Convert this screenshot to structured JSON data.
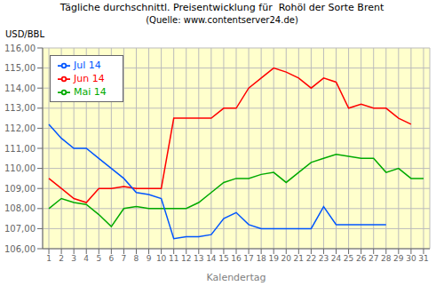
{
  "chart_data": {
    "type": "line",
    "title": "Tägliche durchschnittl. Preisentwicklung für  Rohöl der Sorte Brent",
    "subtitle": "(Quelle: www.contentserver24.de)",
    "x_label": "Kalendertag",
    "y_label": "USD/BBL",
    "xlim": [
      0.5,
      31.5
    ],
    "xticks": [
      1,
      2,
      3,
      4,
      5,
      6,
      7,
      8,
      9,
      10,
      11,
      12,
      13,
      14,
      15,
      16,
      17,
      18,
      19,
      20,
      21,
      22,
      23,
      24,
      25,
      26,
      27,
      28,
      29,
      30,
      31
    ],
    "ylim": [
      106.0,
      116.0
    ],
    "yticks": [
      {
        "value": 106.0,
        "label": "106,00"
      },
      {
        "value": 107.0,
        "label": "107,00"
      },
      {
        "value": 108.0,
        "label": "108,00"
      },
      {
        "value": 109.0,
        "label": "109,00"
      },
      {
        "value": 110.0,
        "label": "110,00"
      },
      {
        "value": 111.0,
        "label": "111,00"
      },
      {
        "value": 112.0,
        "label": "112,00"
      },
      {
        "value": 113.0,
        "label": "113,00"
      },
      {
        "value": 114.0,
        "label": "114,00"
      },
      {
        "value": 115.0,
        "label": "115,00"
      },
      {
        "value": 116.0,
        "label": "116,00"
      }
    ],
    "grid": true,
    "legend": "upper left",
    "x": [
      1,
      2,
      3,
      4,
      5,
      6,
      7,
      8,
      9,
      10,
      11,
      12,
      13,
      14,
      15,
      16,
      17,
      18,
      19,
      20,
      21,
      22,
      23,
      24,
      25,
      26,
      27,
      28,
      29,
      30,
      31
    ],
    "series": [
      {
        "name": "Mai 14",
        "color": "#00AA00",
        "values": [
          108.0,
          108.5,
          108.3,
          108.2,
          107.7,
          107.1,
          108.0,
          108.1,
          108.0,
          108.0,
          108.0,
          108.0,
          108.3,
          108.8,
          109.3,
          109.5,
          109.5,
          109.7,
          109.8,
          109.3,
          109.8,
          110.3,
          110.5,
          110.7,
          110.6,
          110.5,
          110.5,
          109.8,
          110.0,
          109.5,
          109.5
        ]
      },
      {
        "name": "Jun 14",
        "color": "#FF0000",
        "values": [
          109.5,
          109.0,
          108.5,
          108.3,
          109.0,
          109.0,
          109.1,
          109.0,
          109.0,
          109.0,
          112.5,
          112.5,
          112.5,
          112.5,
          113.0,
          113.0,
          114.0,
          114.5,
          115.0,
          114.8,
          114.5,
          114.0,
          114.5,
          114.3,
          113.0,
          113.2,
          113.0,
          113.0,
          112.5,
          112.2,
          null
        ]
      },
      {
        "name": "Jul 14",
        "color": "#0055FF",
        "values": [
          112.2,
          111.5,
          111.0,
          111.0,
          110.5,
          110.0,
          109.5,
          108.8,
          108.7,
          108.5,
          106.5,
          106.6,
          106.6,
          106.7,
          107.5,
          107.8,
          107.2,
          107.0,
          107.0,
          107.0,
          107.0,
          107.0,
          108.1,
          107.2,
          107.2,
          107.2,
          107.2,
          107.2,
          null,
          null,
          null
        ]
      }
    ]
  }
}
